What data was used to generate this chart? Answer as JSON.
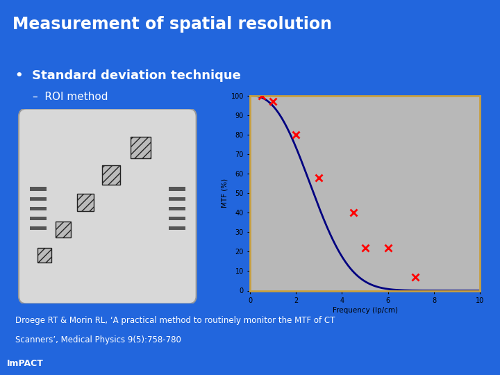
{
  "title": "Measurement of spatial resolution",
  "title_bg": "#5500bb",
  "slide_bg": "#2266dd",
  "separator_color": "#6699ff",
  "bullet1": "Standard deviation technique",
  "bullet2": "ROI method",
  "reference_line1": "Droege RT & Morin RL, ‘A practical method to routinely monitor the MTF of CT",
  "reference_line2": "Scanners’, Medical Physics 9(5):758-780",
  "impact_text": "ImPACT",
  "impact_bg": "#5500bb",
  "plot_bg": "#b8b8b8",
  "plot_border": "#c8a040",
  "curve_color": "#000080",
  "point_color": "#ff0000",
  "xlabel": "Frequency (lp/cm)",
  "ylabel": "MTF (%)",
  "xmin": 0,
  "xmax": 10,
  "ymin": 0,
  "ymax": 100,
  "data_x": [
    0.5,
    1.0,
    2.0,
    3.0,
    4.5,
    5.0,
    6.0,
    7.2
  ],
  "data_y": [
    100,
    97,
    80,
    58,
    40,
    22,
    22,
    7
  ],
  "yticks": [
    0,
    10,
    20,
    30,
    40,
    50,
    60,
    70,
    80,
    90,
    100
  ],
  "xticks": [
    0,
    2,
    4,
    6,
    8,
    10
  ],
  "sigma": 3.2,
  "n_exp": 2.5
}
